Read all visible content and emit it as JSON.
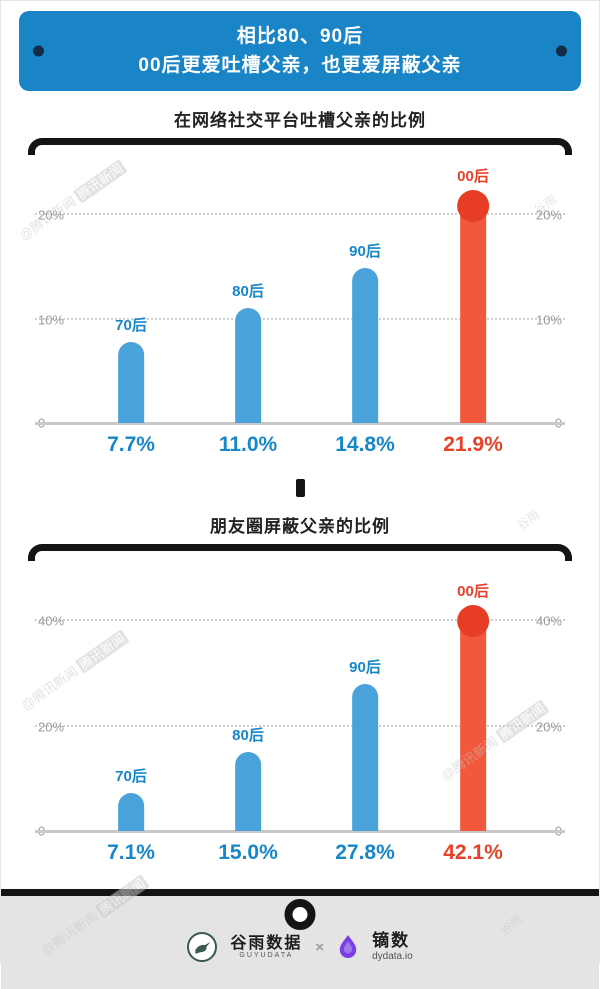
{
  "banner": {
    "line1": "相比80、90后",
    "line2": "00后更爱吐槽父亲，也更爱屏蔽父亲"
  },
  "chart_data": [
    {
      "type": "bar",
      "title": "在网络社交平台吐槽父亲的比例",
      "categories": [
        "70后",
        "80后",
        "90后",
        "00后"
      ],
      "values": [
        7.7,
        11.0,
        14.8,
        21.9
      ],
      "value_labels": [
        "7.7%",
        "11.0%",
        "14.8%",
        "21.9%"
      ],
      "yticks": [
        {
          "value": 0,
          "label": "0"
        },
        {
          "value": 10,
          "label": "10%"
        },
        {
          "value": 20,
          "label": "20%"
        }
      ],
      "ylim": [
        0,
        24
      ],
      "grid": "dotted",
      "highlight_index": 3,
      "bar_color": "#4aa2db",
      "highlight_color": "#f2593c"
    },
    {
      "type": "bar",
      "title": "朋友圈屏蔽父亲的比例",
      "categories": [
        "70后",
        "80后",
        "90后",
        "00后"
      ],
      "values": [
        7.1,
        15.0,
        27.8,
        42.1
      ],
      "value_labels": [
        "7.1%",
        "15.0%",
        "27.8%",
        "42.1%"
      ],
      "yticks": [
        {
          "value": 0,
          "label": "0"
        },
        {
          "value": 20,
          "label": "20%"
        },
        {
          "value": 40,
          "label": "40%"
        }
      ],
      "ylim": [
        0,
        46
      ],
      "grid": "dotted",
      "highlight_index": 3,
      "bar_color": "#4aa2db",
      "highlight_color": "#f2593c"
    }
  ],
  "watermarks": {
    "tencent_prefix": "@腾讯新闻",
    "tencent_boxed": "腾讯新闻",
    "guyu": "谷雨"
  },
  "footer": {
    "guyu_name": "谷雨数据",
    "guyu_sub": "GUYUDATA",
    "separator": "×",
    "dishu_name": "镝数",
    "dishu_sub": "dydata.io"
  },
  "colors": {
    "banner_bg": "#1a85c6",
    "banner_dot": "#122c44",
    "ink": "#141414",
    "bar_blue": "#4aa2db",
    "bar_orange": "#f2593c",
    "dot_orange": "#e73d24",
    "label_blue": "#1787c8",
    "label_orange": "#e8412a",
    "grid": "#cfcfcf",
    "baseline": "#c8c8c8",
    "footer_band": "#e4e4e4",
    "guyu_green": "#3a5a4e",
    "dishu_purple": "#7b3fe4"
  }
}
